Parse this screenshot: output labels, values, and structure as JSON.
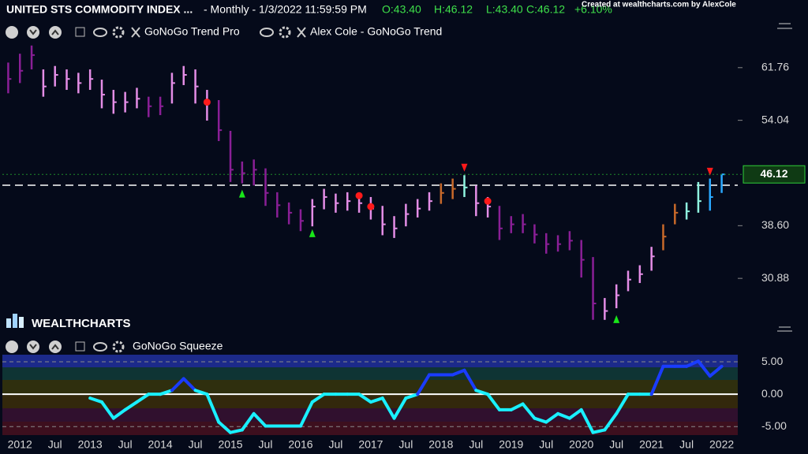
{
  "header": {
    "title": "UNITED STS COMMODITY INDEX ...",
    "info": "- Monthly - 1/3/2022 11:59:59 PM",
    "quote": [
      "O:43.40",
      "H:46.12",
      "L:43.40",
      "C:46.12",
      "+6.10%"
    ],
    "credit": "Created at wealthcharts.com by AlexCole"
  },
  "toolbar": {
    "indicator_1": "GoNoGo Trend Pro",
    "indicator_2": "Alex Cole - GoNoGo Trend",
    "indicator_3": "GoNoGo Squeeze",
    "logo": "WEALTHCHARTS"
  },
  "chart_data": [
    {
      "type": "ohlc",
      "categories": [
        null,
        "2012",
        null,
        null,
        "Jul",
        null,
        null,
        "2013",
        null,
        null,
        "Jul",
        null,
        null,
        "2014",
        null,
        null,
        "Jul",
        null,
        null,
        "2015",
        null,
        null,
        "Jul",
        null,
        null,
        "2016",
        null,
        null,
        "Jul",
        null,
        null,
        "2017",
        null,
        null,
        "Jul",
        null,
        null,
        "2018",
        null,
        null,
        "Jul",
        null,
        null,
        "2019",
        null,
        null,
        "Jul",
        null,
        null,
        "2020",
        null,
        null,
        "Jul",
        null,
        null,
        "2021",
        null,
        null,
        "Jul",
        null,
        null,
        "2022"
      ],
      "close": [
        60.1,
        61.3,
        63.6,
        59.0,
        60.7,
        60.1,
        59.5,
        60.1,
        57.8,
        56.7,
        56.7,
        57.2,
        56.1,
        56.1,
        59.5,
        60.7,
        59.0,
        56.7,
        52.6,
        46.8,
        46.3,
        46.8,
        43.4,
        41.6,
        40.5,
        39.3,
        41.4,
        42.8,
        41.9,
        42.2,
        41.9,
        41.1,
        38.8,
        38.2,
        40.3,
        41.1,
        42.2,
        43.4,
        44.0,
        44.2,
        41.9,
        41.4,
        38.2,
        38.8,
        38.8,
        37.3,
        35.9,
        35.9,
        36.4,
        33.6,
        27.2,
        26.1,
        28.4,
        30.7,
        31.5,
        34.1,
        37.0,
        40.5,
        40.7,
        42.2,
        42.8,
        46.12
      ],
      "high": [
        62.5,
        63.8,
        65.0,
        61.5,
        62.0,
        61.5,
        61.0,
        61.5,
        60.0,
        58.5,
        58.2,
        58.8,
        57.5,
        57.5,
        61.0,
        62.0,
        61.5,
        58.5,
        57.0,
        52.5,
        48.0,
        48.3,
        47.0,
        43.5,
        42.0,
        41.0,
        42.5,
        44.0,
        43.3,
        43.5,
        43.2,
        42.8,
        41.5,
        40.0,
        41.8,
        42.5,
        43.5,
        44.8,
        45.5,
        46.0,
        44.5,
        42.8,
        41.5,
        40.0,
        40.3,
        38.8,
        37.5,
        37.2,
        37.8,
        36.5,
        34.0,
        28.0,
        30.0,
        32.0,
        32.8,
        35.5,
        38.8,
        41.8,
        42.0,
        45.0,
        45.5,
        46.12
      ],
      "low": [
        58.0,
        59.5,
        61.5,
        57.5,
        59.0,
        58.5,
        58.0,
        58.5,
        55.8,
        55.0,
        55.2,
        55.8,
        54.5,
        54.8,
        56.5,
        59.2,
        56.5,
        54.0,
        51.0,
        45.0,
        44.8,
        44.5,
        41.5,
        39.8,
        38.8,
        37.8,
        38.5,
        41.0,
        40.5,
        40.8,
        40.5,
        39.5,
        37.2,
        36.8,
        38.5,
        39.8,
        40.8,
        41.8,
        42.5,
        42.8,
        40.0,
        39.8,
        36.5,
        37.5,
        37.5,
        36.0,
        34.5,
        34.8,
        35.0,
        31.0,
        24.8,
        24.8,
        26.5,
        29.0,
        30.2,
        32.0,
        35.0,
        38.8,
        39.5,
        40.5,
        40.8,
        43.4
      ],
      "trend": [
        "P",
        "P",
        "P",
        "L",
        "L",
        "L",
        "L",
        "L",
        "L",
        "L",
        "L",
        "L",
        "P",
        "P",
        "L",
        "L",
        "L",
        "L",
        "P",
        "P",
        "P",
        "P",
        "P",
        "P",
        "P",
        "P",
        "L",
        "L",
        "L",
        "L",
        "L",
        "L",
        "L",
        "L",
        "L",
        "L",
        "L",
        "O",
        "O",
        "C",
        "L",
        "L",
        "P",
        "P",
        "P",
        "P",
        "P",
        "P",
        "P",
        "P",
        "P",
        "L",
        "L",
        "L",
        "L",
        "L",
        "O",
        "O",
        "C",
        "C",
        "B",
        "B"
      ],
      "palette": {
        "P": "#8a1f96",
        "L": "#e48de6",
        "O": "#c8692a",
        "C": "#8ff5e0",
        "B": "#2aa8ff"
      },
      "markers": [
        {
          "shape": "dot",
          "color": "#ff1a1a",
          "values": [
            null,
            null,
            null,
            null,
            null,
            null,
            null,
            null,
            null,
            null,
            null,
            null,
            null,
            null,
            null,
            null,
            null,
            56.7,
            null,
            null,
            null,
            null,
            null,
            null,
            null,
            null,
            null,
            null,
            null,
            null,
            43.0,
            41.4,
            null,
            null,
            null,
            null,
            null,
            null,
            null,
            null,
            null,
            42.2,
            null,
            null,
            null,
            null,
            null,
            null,
            null,
            null,
            null,
            null,
            null,
            null,
            null,
            null,
            null,
            null,
            null,
            null,
            null,
            null
          ]
        },
        {
          "shape": "up",
          "color": "#19e619",
          "values": [
            null,
            null,
            null,
            null,
            null,
            null,
            null,
            null,
            null,
            null,
            null,
            null,
            null,
            null,
            null,
            null,
            null,
            null,
            null,
            null,
            43.3,
            null,
            null,
            null,
            null,
            null,
            37.5,
            null,
            null,
            null,
            null,
            null,
            null,
            null,
            null,
            null,
            null,
            null,
            null,
            null,
            null,
            null,
            null,
            null,
            null,
            null,
            null,
            null,
            null,
            null,
            null,
            null,
            24.9,
            null,
            null,
            null,
            null,
            null,
            null,
            null,
            null,
            null
          ]
        },
        {
          "shape": "down",
          "color": "#ff1a1a",
          "values": [
            null,
            null,
            null,
            null,
            null,
            null,
            null,
            null,
            null,
            null,
            null,
            null,
            null,
            null,
            null,
            null,
            null,
            null,
            null,
            null,
            null,
            null,
            null,
            null,
            null,
            null,
            null,
            null,
            null,
            null,
            null,
            null,
            null,
            null,
            null,
            null,
            null,
            null,
            null,
            47.1,
            null,
            null,
            null,
            null,
            null,
            null,
            null,
            null,
            null,
            null,
            null,
            null,
            null,
            null,
            null,
            null,
            null,
            null,
            null,
            null,
            46.5,
            null
          ]
        }
      ],
      "hline": 44.53,
      "ylim": [
        23.16,
        69.36
      ],
      "yticks": [
        61.76,
        54.04,
        {
          "value": 38.6,
          "label": "38.60"
        },
        30.88
      ]
    },
    {
      "type": "line",
      "values": [
        null,
        null,
        null,
        null,
        null,
        null,
        null,
        -0.6,
        -1.2,
        -3.7,
        -2.4,
        -1.2,
        0,
        0,
        0.6,
        2.4,
        0.6,
        0,
        -4.3,
        -5.9,
        -5.5,
        -3.0,
        -4.9,
        -4.9,
        -4.9,
        -4.9,
        -1.2,
        0,
        0,
        0,
        0,
        -1.2,
        -0.6,
        -3.7,
        -0.6,
        0,
        3.0,
        3.0,
        3.0,
        3.7,
        0.6,
        0,
        -2.4,
        -2.4,
        -1.5,
        -3.7,
        -4.3,
        -3.0,
        -3.7,
        -2.4,
        -5.9,
        -5.5,
        -3.0,
        0,
        0,
        0,
        4.3,
        4.3,
        4.3,
        5.1,
        2.8,
        4.3
      ],
      "color": "#19f0ff",
      "color_above": "#1a3cff",
      "ylim": [
        -6.3,
        6.1
      ],
      "yticks": [
        {
          "value": 5,
          "label": "5.00"
        },
        {
          "value": 0,
          "label": "0.00"
        },
        {
          "value": -5,
          "label": "-5.00"
        }
      ]
    }
  ]
}
